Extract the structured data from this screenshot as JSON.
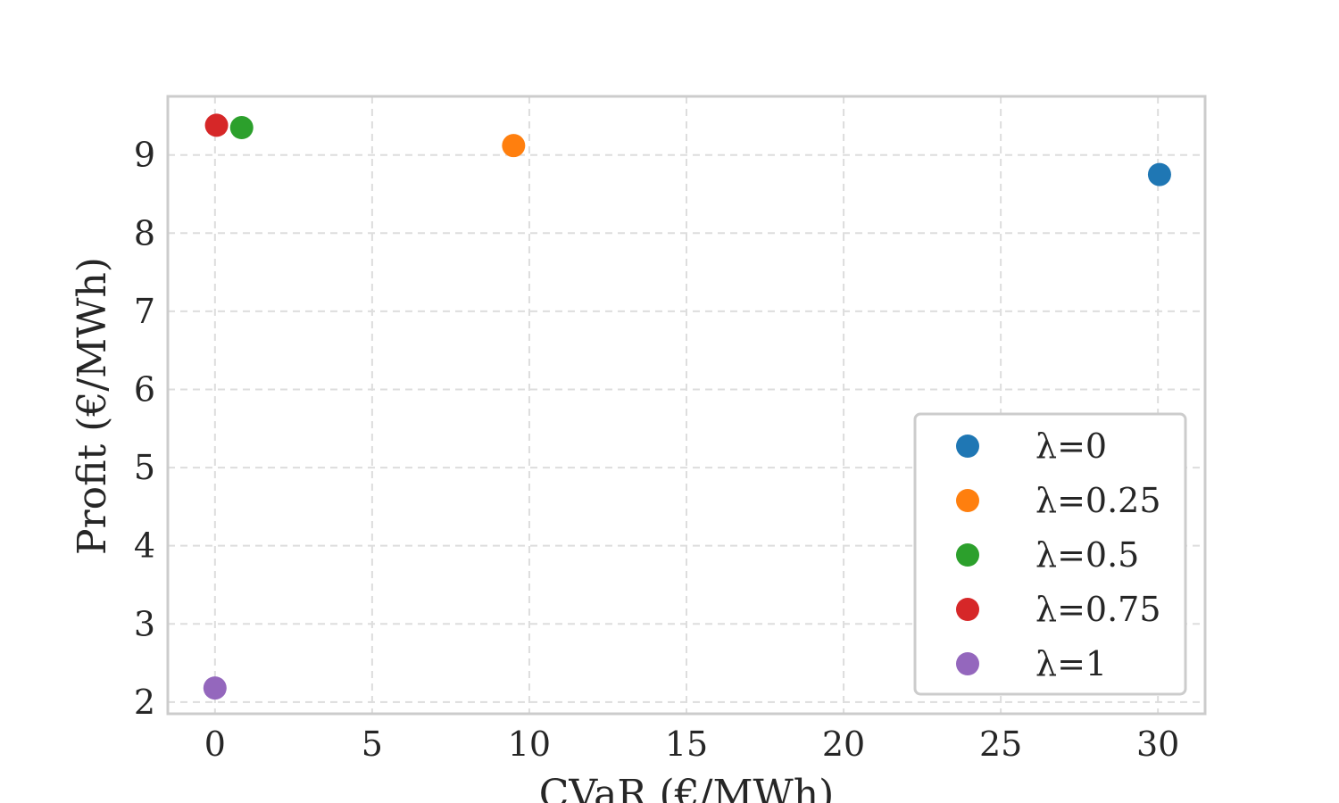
{
  "chart_data": {
    "type": "scatter",
    "xlabel": "CVaR (€/MWh)",
    "ylabel": "Profit (€/MWh)",
    "xlim": [
      -1.5,
      31.5
    ],
    "ylim": [
      1.85,
      9.75
    ],
    "xticks": [
      0,
      5,
      10,
      15,
      20,
      25,
      30
    ],
    "yticks": [
      2,
      3,
      4,
      5,
      6,
      7,
      8,
      9
    ],
    "grid": true,
    "legend_position": "lower-right",
    "series": [
      {
        "name": "λ=0",
        "color": "#1f77b4",
        "x": [
          30.05
        ],
        "y": [
          8.75
        ]
      },
      {
        "name": "λ=0.25",
        "color": "#ff7f0e",
        "x": [
          9.5
        ],
        "y": [
          9.12
        ]
      },
      {
        "name": "λ=0.5",
        "color": "#2ca02c",
        "x": [
          0.85
        ],
        "y": [
          9.35
        ]
      },
      {
        "name": "λ=0.75",
        "color": "#d62728",
        "x": [
          0.05
        ],
        "y": [
          9.38
        ]
      },
      {
        "name": "λ=1",
        "color": "#9467bd",
        "x": [
          0.0
        ],
        "y": [
          2.18
        ]
      }
    ]
  }
}
